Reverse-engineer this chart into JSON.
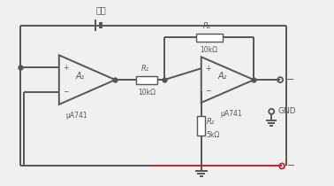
{
  "bg_color": "#f0f0f0",
  "line_color": "#555555",
  "text_color": "#555555",
  "red_line_color": "#cc2222",
  "battery_label": "电池",
  "op1_label": "A₁",
  "op1_sub": "μA741",
  "op2_label": "A₂",
  "op2_sub": "μA741",
  "R1_label": "R₁",
  "R1_val": "10kΩ",
  "R2_label": "R₂",
  "R2_val": "10kΩ",
  "R3_label": "R₂",
  "R3_val": "5kΩ",
  "gnd_label": "GND",
  "minus_label": "−",
  "minus_label2": "−"
}
